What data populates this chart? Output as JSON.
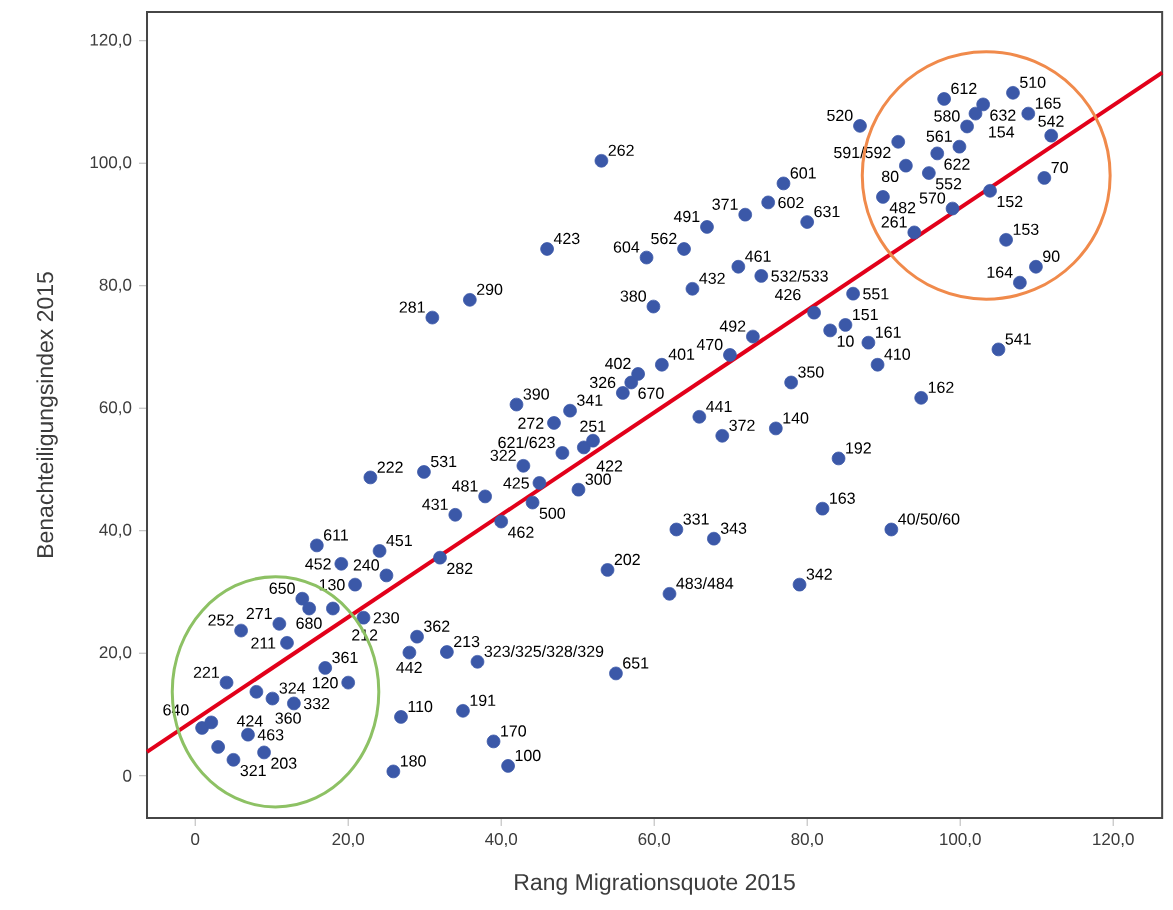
{
  "chart_data": {
    "type": "scatter",
    "xlabel": "Rang Migrationsquote 2015",
    "ylabel": "Benachteiligungsindex 2015",
    "marker": "circle",
    "xlim": [
      -6.3,
      126.4
    ],
    "ylim": [
      -6.9,
      124.7
    ],
    "xticks": [
      0,
      {
        "value": 20,
        "label": "20,0"
      },
      {
        "value": 40,
        "label": "40,0"
      },
      {
        "value": 60,
        "label": "60,0"
      },
      {
        "value": 80,
        "label": "80,0"
      },
      {
        "value": 100,
        "label": "100,0"
      },
      {
        "value": 120,
        "label": "120,0"
      }
    ],
    "yticks": [
      0,
      {
        "value": 20,
        "label": "20,0"
      },
      {
        "value": 40,
        "label": "40,0"
      },
      {
        "value": 60,
        "label": "60,0"
      },
      {
        "value": 80,
        "label": "80,0"
      },
      {
        "value": 100,
        "label": "100,0"
      },
      {
        "value": 120,
        "label": "120,0"
      }
    ],
    "series": [
      {
        "type": "scatter",
        "color": "#3b58a8",
        "x": [
          15.9,
          19.1,
          24.1,
          25.0,
          34.0,
          32.0,
          20.9,
          14.0,
          14.9,
          6.0,
          11.0,
          12.0,
          18.0,
          22.0,
          4.1,
          8.0,
          10.1,
          12.9,
          17.0,
          20.0,
          0.9,
          2.1,
          3.0,
          5.0,
          6.9,
          9.0,
          26.9,
          25.9,
          28.0,
          29.0,
          32.9,
          36.9,
          35.0,
          39.0,
          40.9,
          55.0,
          53.9,
          62.0,
          62.9,
          67.8,
          79.0,
          82.0,
          84.1,
          91.0,
          40.0,
          44.1,
          45.0,
          37.9,
          42.9,
          29.9,
          22.9,
          50.1,
          48.0,
          50.8,
          52.0,
          46.9,
          49.0,
          42.0,
          55.9,
          57.0,
          57.9,
          61.0,
          65.9,
          68.9,
          75.9,
          69.9,
          77.9,
          72.9,
          83.0,
          85.0,
          88.0,
          89.2,
          94.9,
          105.0,
          80.9,
          86.0,
          59.9,
          65.0,
          59.0,
          63.9,
          71.0,
          74.0,
          66.9,
          71.9,
          74.9,
          76.9,
          80.0,
          53.1,
          46.0,
          35.9,
          31.0,
          86.9,
          91.9,
          92.9,
          89.9,
          97.9,
          103.0,
          102.0,
          106.9,
          108.9,
          111.9,
          100.9,
          99.9,
          97.0,
          95.9,
          99.0,
          103.9,
          111.0,
          94.0,
          106.0,
          109.9,
          107.8
        ],
        "values": [
          37.6,
          34.6,
          36.7,
          32.7,
          42.6,
          35.6,
          31.2,
          28.9,
          27.3,
          23.7,
          24.8,
          21.7,
          27.3,
          25.8,
          15.2,
          13.7,
          12.6,
          11.8,
          17.6,
          15.2,
          7.8,
          8.7,
          4.7,
          2.6,
          6.7,
          3.8,
          9.6,
          0.7,
          20.1,
          22.7,
          20.2,
          18.6,
          10.6,
          5.6,
          1.6,
          16.7,
          33.6,
          29.7,
          40.2,
          38.7,
          31.2,
          43.6,
          51.8,
          40.2,
          41.5,
          44.6,
          47.8,
          45.6,
          50.6,
          49.6,
          48.7,
          46.7,
          52.7,
          53.6,
          54.7,
          57.6,
          59.6,
          60.6,
          62.5,
          64.2,
          65.6,
          67.1,
          58.6,
          55.5,
          56.7,
          68.7,
          64.2,
          71.7,
          72.7,
          73.6,
          70.7,
          67.1,
          61.7,
          69.6,
          75.6,
          78.7,
          76.6,
          79.5,
          84.6,
          86.0,
          83.1,
          81.6,
          89.6,
          91.6,
          93.6,
          96.7,
          90.4,
          100.4,
          86.0,
          77.7,
          74.8,
          106.1,
          103.5,
          99.6,
          94.5,
          110.5,
          109.6,
          108.1,
          111.5,
          108.1,
          104.5,
          106.0,
          102.7,
          101.6,
          98.4,
          92.6,
          95.5,
          97.6,
          88.7,
          87.5,
          83.1,
          80.5
        ]
      },
      {
        "type": "line",
        "color": "#e2001a",
        "marker": "none",
        "x": [
          -6.3,
          126.4
        ],
        "values": [
          3.9,
          114.8
        ]
      }
    ],
    "annotations": [
      {
        "text": "611",
        "x": 15.9,
        "y": 37.6
      },
      {
        "text": "452",
        "x": 19.1,
        "y": 34.6
      },
      {
        "text": "451",
        "x": 24.1,
        "y": 36.7
      },
      {
        "text": "240",
        "x": 25.0,
        "y": 32.7
      },
      {
        "text": "431",
        "x": 34.0,
        "y": 42.6
      },
      {
        "text": "282",
        "x": 32.0,
        "y": 35.6
      },
      {
        "text": "130",
        "x": 20.9,
        "y": 31.2
      },
      {
        "text": "650",
        "x": 14.0,
        "y": 28.9
      },
      {
        "text": "680",
        "x": 14.9,
        "y": 27.3
      },
      {
        "text": "252",
        "x": 6.0,
        "y": 23.7
      },
      {
        "text": "271",
        "x": 11.0,
        "y": 24.8
      },
      {
        "text": "211",
        "x": 12.0,
        "y": 21.7
      },
      {
        "text": "212",
        "x": 18.0,
        "y": 27.3
      },
      {
        "text": "230",
        "x": 22.0,
        "y": 25.8
      },
      {
        "text": "221",
        "x": 4.1,
        "y": 15.2
      },
      {
        "text": "360",
        "x": 8.0,
        "y": 13.7
      },
      {
        "text": "324",
        "x": 10.1,
        "y": 12.6
      },
      {
        "text": "332",
        "x": 12.9,
        "y": 11.8
      },
      {
        "text": "361",
        "x": 17.0,
        "y": 17.6
      },
      {
        "text": "120",
        "x": 20.0,
        "y": 15.2
      },
      {
        "text": "640",
        "x": 0.9,
        "y": 7.8
      },
      {
        "text": "424",
        "x": 3.0,
        "y": 4.7
      },
      {
        "text": "321",
        "x": 5.0,
        "y": 2.6
      },
      {
        "text": "463",
        "x": 6.9,
        "y": 6.7
      },
      {
        "text": "203",
        "x": 9.0,
        "y": 3.8
      },
      {
        "text": "110",
        "x": 26.9,
        "y": 9.6
      },
      {
        "text": "180",
        "x": 25.9,
        "y": 0.7
      },
      {
        "text": "442",
        "x": 28.0,
        "y": 20.1
      },
      {
        "text": "362",
        "x": 29.0,
        "y": 22.7
      },
      {
        "text": "213",
        "x": 32.9,
        "y": 20.2
      },
      {
        "text": "323/325/328/329",
        "x": 36.9,
        "y": 18.6
      },
      {
        "text": "191",
        "x": 35.0,
        "y": 10.6
      },
      {
        "text": "170",
        "x": 39.0,
        "y": 5.6
      },
      {
        "text": "100",
        "x": 40.9,
        "y": 1.6
      },
      {
        "text": "651",
        "x": 55.0,
        "y": 16.7
      },
      {
        "text": "202",
        "x": 53.9,
        "y": 33.6
      },
      {
        "text": "483/484",
        "x": 62.0,
        "y": 29.7
      },
      {
        "text": "331",
        "x": 62.9,
        "y": 40.2
      },
      {
        "text": "343",
        "x": 67.8,
        "y": 38.7
      },
      {
        "text": "342",
        "x": 79.0,
        "y": 31.2
      },
      {
        "text": "163",
        "x": 82.0,
        "y": 43.6
      },
      {
        "text": "192",
        "x": 84.1,
        "y": 51.8
      },
      {
        "text": "40/50/60",
        "x": 91.0,
        "y": 40.2
      },
      {
        "text": "462",
        "x": 40.0,
        "y": 41.5
      },
      {
        "text": "500",
        "x": 44.1,
        "y": 44.6
      },
      {
        "text": "425",
        "x": 45.0,
        "y": 47.8
      },
      {
        "text": "481",
        "x": 37.9,
        "y": 45.6
      },
      {
        "text": "322",
        "x": 42.9,
        "y": 50.6
      },
      {
        "text": "531",
        "x": 29.9,
        "y": 49.6
      },
      {
        "text": "222",
        "x": 22.9,
        "y": 48.7
      },
      {
        "text": "300",
        "x": 50.1,
        "y": 46.7
      },
      {
        "text": "621/623",
        "x": 48.0,
        "y": 52.7
      },
      {
        "text": "422",
        "x": 50.8,
        "y": 53.6
      },
      {
        "text": "251",
        "x": 52.0,
        "y": 54.7
      },
      {
        "text": "272",
        "x": 46.9,
        "y": 57.6
      },
      {
        "text": "341",
        "x": 49.0,
        "y": 59.6
      },
      {
        "text": "390",
        "x": 42.0,
        "y": 60.6
      },
      {
        "text": "326",
        "x": 55.9,
        "y": 62.5
      },
      {
        "text": "670",
        "x": 57.0,
        "y": 64.2
      },
      {
        "text": "402",
        "x": 57.9,
        "y": 65.6
      },
      {
        "text": "401",
        "x": 61.0,
        "y": 67.1
      },
      {
        "text": "441",
        "x": 65.9,
        "y": 58.6
      },
      {
        "text": "372",
        "x": 68.9,
        "y": 55.5
      },
      {
        "text": "140",
        "x": 75.9,
        "y": 56.7
      },
      {
        "text": "470",
        "x": 69.9,
        "y": 68.7
      },
      {
        "text": "350",
        "x": 77.9,
        "y": 64.2
      },
      {
        "text": "492",
        "x": 72.9,
        "y": 71.7
      },
      {
        "text": "10",
        "x": 83.0,
        "y": 72.7
      },
      {
        "text": "151",
        "x": 85.0,
        "y": 73.6
      },
      {
        "text": "161",
        "x": 88.0,
        "y": 70.7
      },
      {
        "text": "410",
        "x": 89.2,
        "y": 67.1
      },
      {
        "text": "162",
        "x": 94.9,
        "y": 61.7
      },
      {
        "text": "541",
        "x": 105.0,
        "y": 69.6
      },
      {
        "text": "426",
        "x": 80.9,
        "y": 75.6
      },
      {
        "text": "551",
        "x": 86.0,
        "y": 78.7
      },
      {
        "text": "380",
        "x": 59.9,
        "y": 76.6
      },
      {
        "text": "432",
        "x": 65.0,
        "y": 79.5
      },
      {
        "text": "604",
        "x": 59.0,
        "y": 84.6
      },
      {
        "text": "562",
        "x": 63.9,
        "y": 86.0
      },
      {
        "text": "461",
        "x": 71.0,
        "y": 83.1
      },
      {
        "text": "532/533",
        "x": 74.0,
        "y": 81.6
      },
      {
        "text": "491",
        "x": 66.9,
        "y": 89.6
      },
      {
        "text": "371",
        "x": 71.9,
        "y": 91.6
      },
      {
        "text": "602",
        "x": 74.9,
        "y": 93.6
      },
      {
        "text": "601",
        "x": 76.9,
        "y": 96.7
      },
      {
        "text": "631",
        "x": 80.0,
        "y": 90.4
      },
      {
        "text": "262",
        "x": 53.1,
        "y": 100.4
      },
      {
        "text": "423",
        "x": 46.0,
        "y": 86.0
      },
      {
        "text": "290",
        "x": 35.9,
        "y": 77.7
      },
      {
        "text": "281",
        "x": 31.0,
        "y": 74.8
      },
      {
        "text": "520",
        "x": 86.9,
        "y": 106.1
      },
      {
        "text": "591/592",
        "x": 91.9,
        "y": 103.5
      },
      {
        "text": "80",
        "x": 92.9,
        "y": 99.6
      },
      {
        "text": "482",
        "x": 89.9,
        "y": 94.5
      },
      {
        "text": "612",
        "x": 97.9,
        "y": 110.5
      },
      {
        "text": "632",
        "x": 103.0,
        "y": 109.6
      },
      {
        "text": "154",
        "x": 102.0,
        "y": 108.1
      },
      {
        "text": "510",
        "x": 106.9,
        "y": 111.5
      },
      {
        "text": "165",
        "x": 108.9,
        "y": 108.1
      },
      {
        "text": "542",
        "x": 111.9,
        "y": 104.5
      },
      {
        "text": "580",
        "x": 100.9,
        "y": 106.0
      },
      {
        "text": "561",
        "x": 99.9,
        "y": 102.7
      },
      {
        "text": "622",
        "x": 97.0,
        "y": 101.6
      },
      {
        "text": "552",
        "x": 95.9,
        "y": 98.4
      },
      {
        "text": "570",
        "x": 99.0,
        "y": 92.6
      },
      {
        "text": "152",
        "x": 103.9,
        "y": 95.5
      },
      {
        "text": "70",
        "x": 111.0,
        "y": 97.6
      },
      {
        "text": "261",
        "x": 94.0,
        "y": 88.7
      },
      {
        "text": "153",
        "x": 106.0,
        "y": 87.5
      },
      {
        "text": "90",
        "x": 109.9,
        "y": 83.1
      },
      {
        "text": "164",
        "x": 107.8,
        "y": 80.5
      }
    ]
  }
}
